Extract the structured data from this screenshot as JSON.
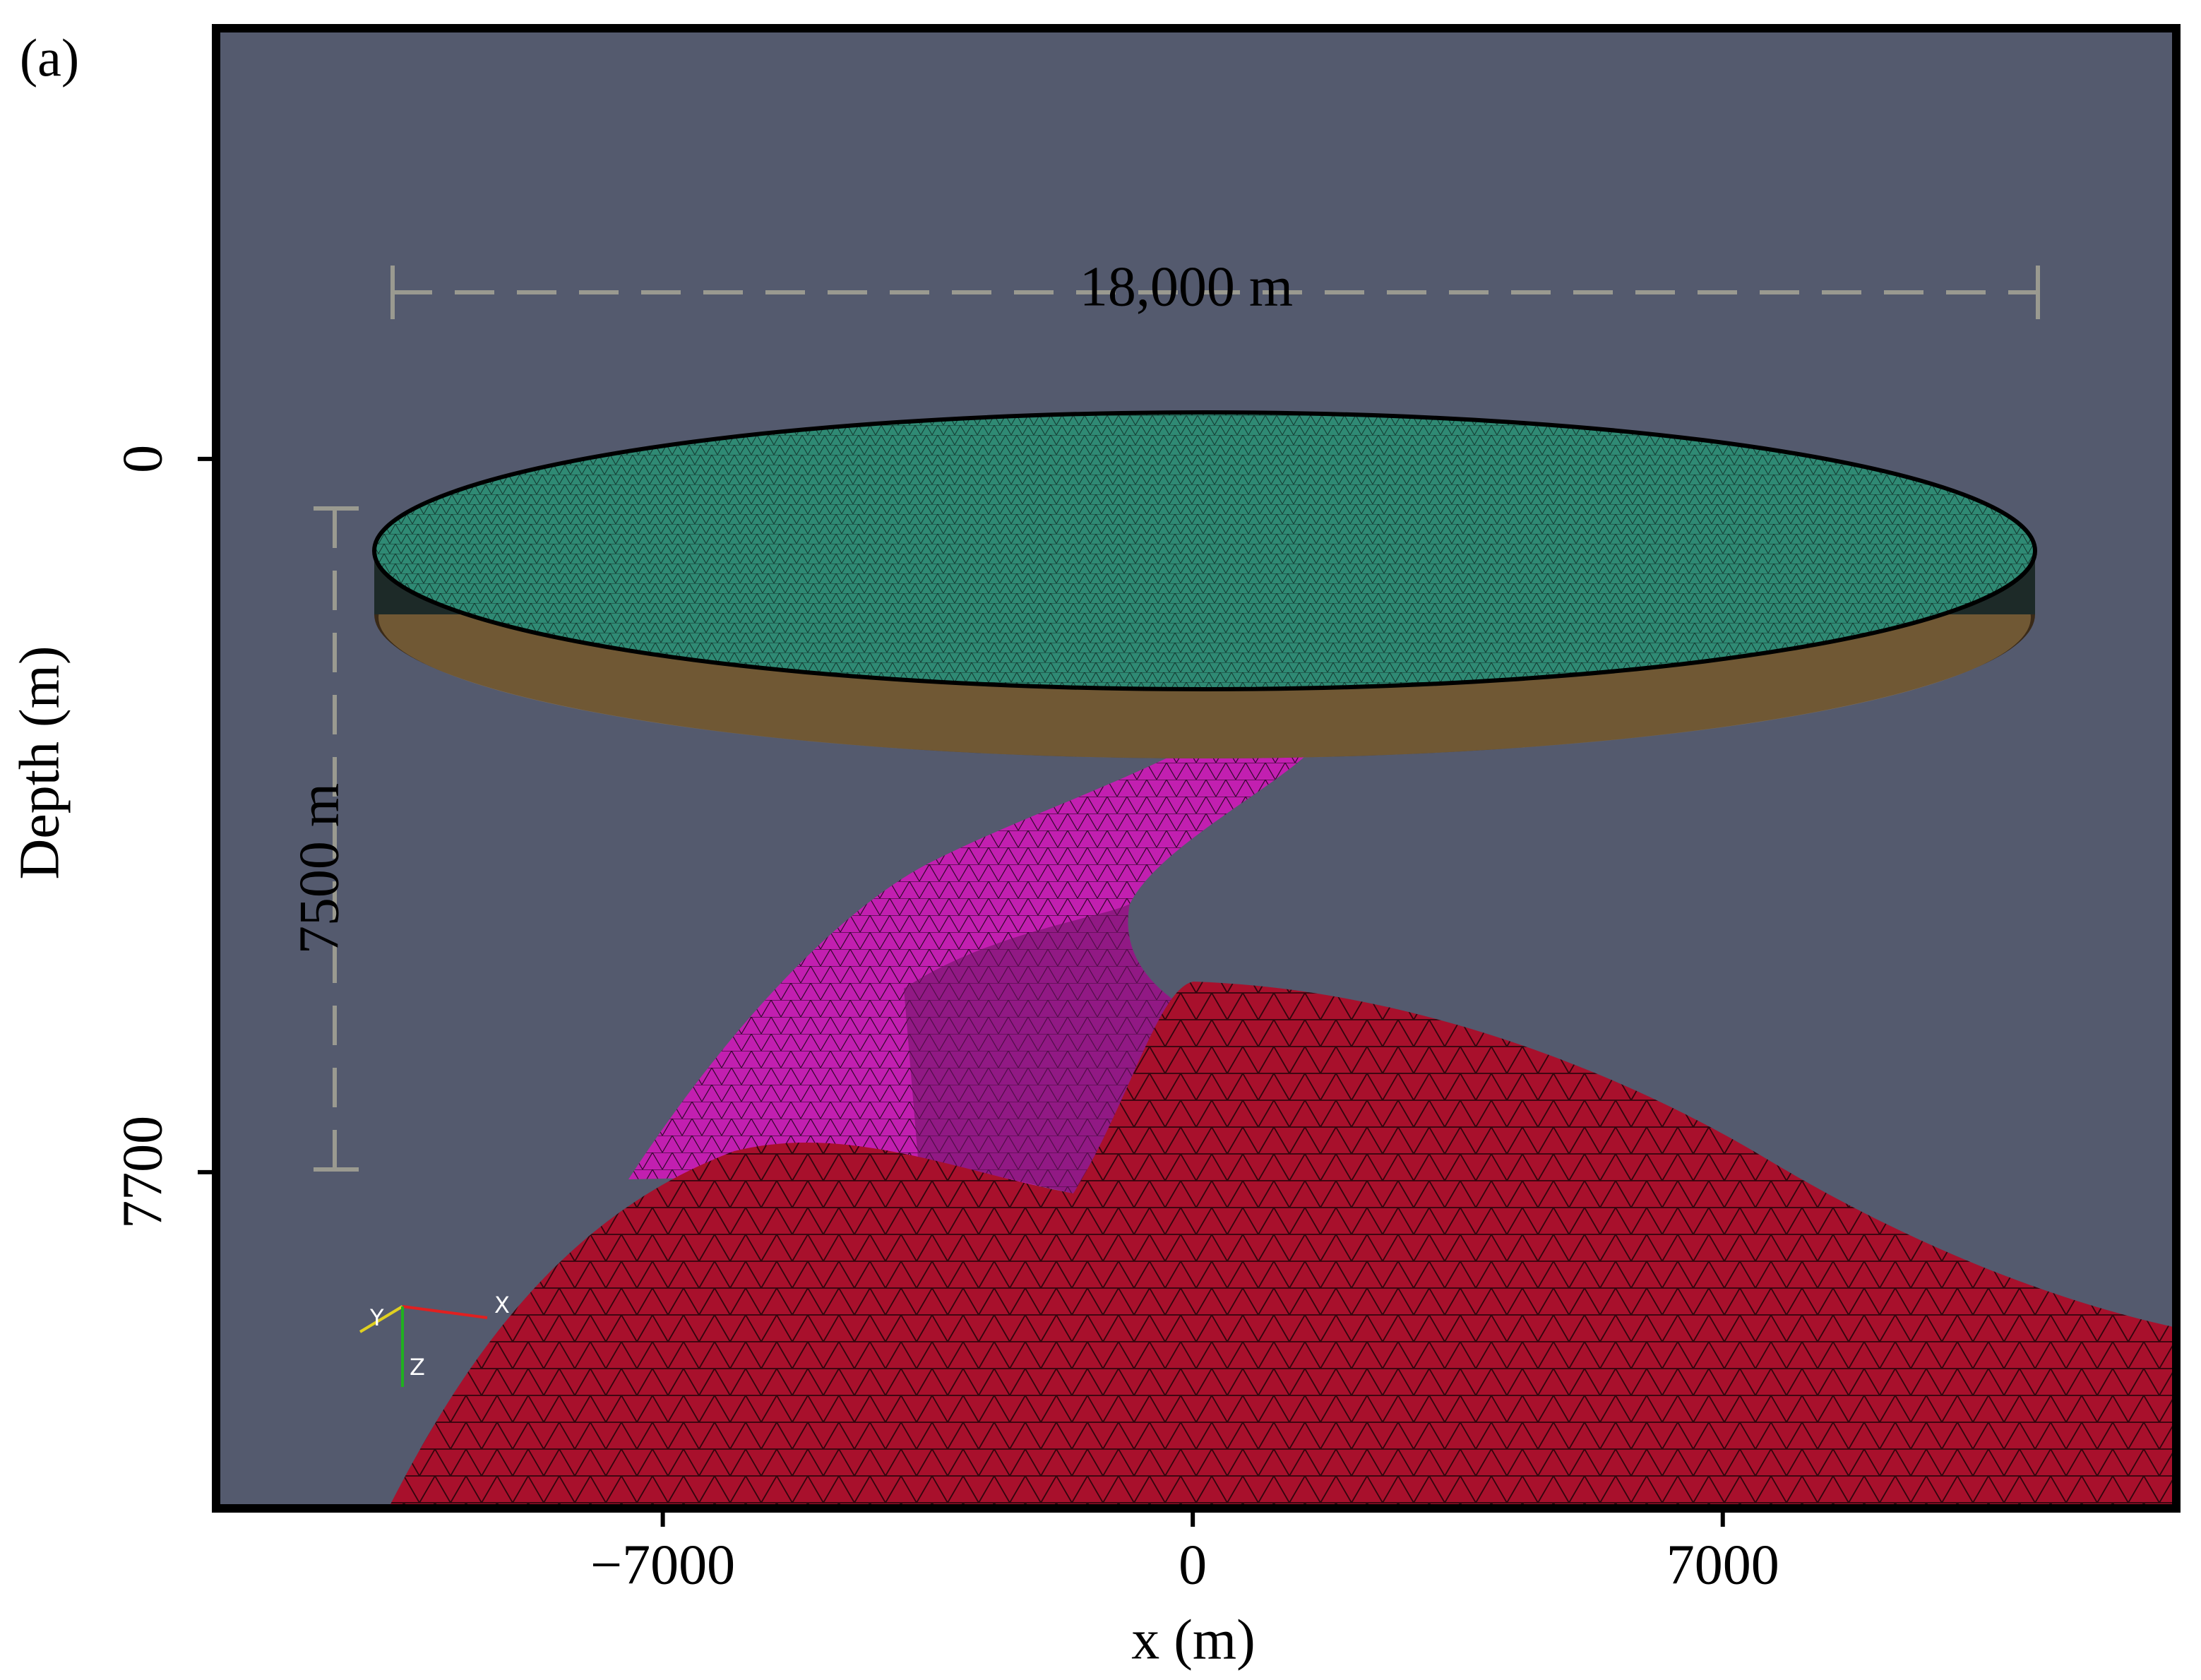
{
  "chart_data": {
    "type": "mesh",
    "panel_label": "(a)",
    "xlabel": "x (m)",
    "ylabel": "Depth (m)",
    "xlim": [
      -12900,
      12990
    ],
    "xticks": [
      {
        "value": -7000,
        "label": "−7000"
      },
      0,
      7000
    ],
    "ylim": [
      11330,
      -4650
    ],
    "yticks": [
      0,
      7700
    ],
    "annotations": [
      "18,000 m",
      "7500 m"
    ],
    "triad_labels": [
      "X",
      "Y",
      "Z"
    ]
  }
}
